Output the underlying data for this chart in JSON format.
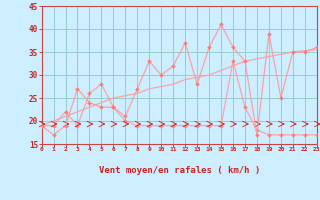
{
  "xlabel": "Vent moyen/en rafales ( km/h )",
  "background_color": "#cceeff",
  "grid_color": "#99cccc",
  "line_color": "#ff9999",
  "marker_color": "#ff7777",
  "x_data": [
    0,
    1,
    2,
    3,
    4,
    5,
    6,
    7,
    8,
    9,
    10,
    11,
    12,
    13,
    14,
    15,
    16,
    17,
    18,
    19,
    20,
    21,
    22,
    23
  ],
  "y_series1": [
    19,
    17,
    19,
    27,
    24,
    23,
    23,
    21,
    27,
    33,
    30,
    32,
    37,
    28,
    36,
    41,
    36,
    33,
    17,
    39,
    25,
    35,
    35,
    36
  ],
  "y_series2": [
    19,
    19,
    22,
    19,
    26,
    28,
    23,
    20,
    19,
    19,
    19,
    19,
    19,
    19,
    19,
    19,
    33,
    23,
    18,
    17,
    17,
    17,
    17,
    17
  ],
  "y_trend": [
    19,
    20,
    21,
    22,
    23,
    24,
    25,
    25.5,
    26,
    27,
    27.5,
    28,
    29,
    29.5,
    30,
    31,
    32,
    33,
    33.5,
    34,
    34.5,
    35,
    35.3,
    35.5
  ],
  "ylim": [
    15,
    45
  ],
  "yticks": [
    15,
    20,
    25,
    30,
    35,
    40,
    45
  ],
  "xlim": [
    0,
    23
  ],
  "xticks": [
    0,
    1,
    2,
    3,
    4,
    5,
    6,
    7,
    8,
    9,
    10,
    11,
    12,
    13,
    14,
    15,
    16,
    17,
    18,
    19,
    20,
    21,
    22,
    23
  ]
}
